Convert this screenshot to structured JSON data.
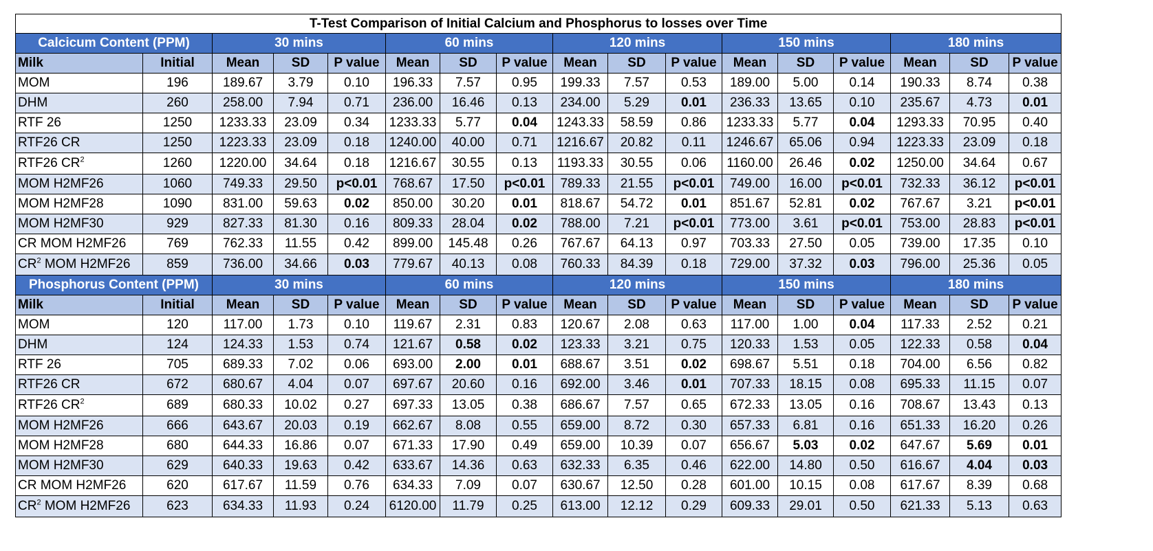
{
  "title": "T-Test Comparison of Initial Calcium and Phosphorus to losses over Time",
  "time_points": [
    "30 mins",
    "60 mins",
    "120 mins",
    "150 mins",
    "180 mins"
  ],
  "header": {
    "milk": "Milk",
    "initial": "Initial",
    "mean": "Mean",
    "sd": "SD",
    "p": "P value"
  },
  "sections": [
    {
      "label": "Calcicum Content (PPM)",
      "rows": [
        {
          "milk": "MOM",
          "initial": "196",
          "cells": [
            "189.67",
            "3.79",
            "0.10",
            "196.33",
            "7.57",
            "0.95",
            "199.33",
            "7.57",
            "0.53",
            "189.00",
            "5.00",
            "0.14",
            "190.33",
            "8.74",
            "0.38"
          ],
          "bold": []
        },
        {
          "milk": "DHM",
          "initial": "260",
          "cells": [
            "258.00",
            "7.94",
            "0.71",
            "236.00",
            "16.46",
            "0.13",
            "234.00",
            "5.29",
            "0.01",
            "236.33",
            "13.65",
            "0.10",
            "235.67",
            "4.73",
            "0.01"
          ],
          "bold": [
            8,
            14
          ]
        },
        {
          "milk": "RTF 26",
          "initial": "1250",
          "cells": [
            "1233.33",
            "23.09",
            "0.34",
            "1233.33",
            "5.77",
            "0.04",
            "1243.33",
            "58.59",
            "0.86",
            "1233.33",
            "5.77",
            "0.04",
            "1293.33",
            "70.95",
            "0.40"
          ],
          "bold": [
            5,
            11
          ]
        },
        {
          "milk": "RTF26 CR",
          "initial": "1250",
          "cells": [
            "1223.33",
            "23.09",
            "0.18",
            "1240.00",
            "40.00",
            "0.71",
            "1216.67",
            "20.82",
            "0.11",
            "1246.67",
            "65.06",
            "0.94",
            "1223.33",
            "23.09",
            "0.18"
          ],
          "bold": []
        },
        {
          "milk": "RTF26 CR",
          "milk_sup": "2",
          "initial": "1260",
          "cells": [
            "1220.00",
            "34.64",
            "0.18",
            "1216.67",
            "30.55",
            "0.13",
            "1193.33",
            "30.55",
            "0.06",
            "1160.00",
            "26.46",
            "0.02",
            "1250.00",
            "34.64",
            "0.67"
          ],
          "bold": [
            11
          ],
          "tall": true
        },
        {
          "milk": "MOM H2MF26",
          "initial": "1060",
          "cells": [
            "749.33",
            "29.50",
            "p<0.01",
            "768.67",
            "17.50",
            "p<0.01",
            "789.33",
            "21.55",
            "p<0.01",
            "749.00",
            "16.00",
            "p<0.01",
            "732.33",
            "36.12",
            "p<0.01"
          ],
          "bold": [
            2,
            5,
            8,
            11,
            14
          ]
        },
        {
          "milk": "MOM H2MF28",
          "initial": "1090",
          "cells": [
            "831.00",
            "59.63",
            "0.02",
            "850.00",
            "30.20",
            "0.01",
            "818.67",
            "54.72",
            "0.01",
            "851.67",
            "52.81",
            "0.02",
            "767.67",
            "3.21",
            "p<0.01"
          ],
          "bold": [
            2,
            5,
            8,
            11,
            14
          ]
        },
        {
          "milk": "MOM H2MF30",
          "initial": "929",
          "cells": [
            "827.33",
            "81.30",
            "0.16",
            "809.33",
            "28.04",
            "0.02",
            "788.00",
            "7.21",
            "p<0.01",
            "773.00",
            "3.61",
            "p<0.01",
            "753.00",
            "28.83",
            "p<0.01"
          ],
          "bold": [
            5,
            8,
            11,
            14
          ]
        },
        {
          "milk": "CR MOM H2MF26",
          "initial": "769",
          "cells": [
            "762.33",
            "11.55",
            "0.42",
            "899.00",
            "145.48",
            "0.26",
            "767.67",
            "64.13",
            "0.97",
            "703.33",
            "27.50",
            "0.05",
            "739.00",
            "17.35",
            "0.10"
          ],
          "bold": []
        },
        {
          "milk": "CR",
          "milk_sup": "2",
          "milk_after": " MOM H2MF26",
          "initial": "859",
          "cells": [
            "736.00",
            "34.66",
            "0.03",
            "779.67",
            "40.13",
            "0.08",
            "760.33",
            "84.39",
            "0.18",
            "729.00",
            "37.32",
            "0.03",
            "796.00",
            "25.36",
            "0.05"
          ],
          "bold": [
            2,
            11
          ],
          "tall": true
        }
      ]
    },
    {
      "label": "Phosphorus Content (PPM)",
      "rows": [
        {
          "milk": "MOM",
          "initial": "120",
          "cells": [
            "117.00",
            "1.73",
            "0.10",
            "119.67",
            "2.31",
            "0.83",
            "120.67",
            "2.08",
            "0.63",
            "117.00",
            "1.00",
            "0.04",
            "117.33",
            "2.52",
            "0.21"
          ],
          "bold": [
            11
          ]
        },
        {
          "milk": "DHM",
          "initial": "124",
          "cells": [
            "124.33",
            "1.53",
            "0.74",
            "121.67",
            "0.58",
            "0.02",
            "123.33",
            "3.21",
            "0.75",
            "120.33",
            "1.53",
            "0.05",
            "122.33",
            "0.58",
            "0.04"
          ],
          "bold": [
            4,
            5,
            14
          ]
        },
        {
          "milk": "RTF 26",
          "initial": "705",
          "cells": [
            "689.33",
            "7.02",
            "0.06",
            "693.00",
            "2.00",
            "0.01",
            "688.67",
            "3.51",
            "0.02",
            "698.67",
            "5.51",
            "0.18",
            "704.00",
            "6.56",
            "0.82"
          ],
          "bold": [
            4,
            5,
            8
          ]
        },
        {
          "milk": "RTF26 CR",
          "initial": "672",
          "cells": [
            "680.67",
            "4.04",
            "0.07",
            "697.67",
            "20.60",
            "0.16",
            "692.00",
            "3.46",
            "0.01",
            "707.33",
            "18.15",
            "0.08",
            "695.33",
            "11.15",
            "0.07"
          ],
          "bold": [
            8
          ]
        },
        {
          "milk": "RTF26 CR",
          "milk_sup": "2",
          "initial": "689",
          "cells": [
            "680.33",
            "10.02",
            "0.27",
            "697.33",
            "13.05",
            "0.38",
            "686.67",
            "7.57",
            "0.65",
            "672.33",
            "13.05",
            "0.16",
            "708.67",
            "13.43",
            "0.13"
          ],
          "bold": [],
          "tall": true
        },
        {
          "milk": "MOM H2MF26",
          "initial": "666",
          "cells": [
            "643.67",
            "20.03",
            "0.19",
            "662.67",
            "8.08",
            "0.55",
            "659.00",
            "8.72",
            "0.30",
            "657.33",
            "6.81",
            "0.16",
            "651.33",
            "16.20",
            "0.26"
          ],
          "bold": []
        },
        {
          "milk": "MOM H2MF28",
          "initial": "680",
          "cells": [
            "644.33",
            "16.86",
            "0.07",
            "671.33",
            "17.90",
            "0.49",
            "659.00",
            "10.39",
            "0.07",
            "656.67",
            "5.03",
            "0.02",
            "647.67",
            "5.69",
            "0.01"
          ],
          "bold": [
            10,
            11,
            13,
            14
          ]
        },
        {
          "milk": "MOM H2MF30",
          "initial": "629",
          "cells": [
            "640.33",
            "19.63",
            "0.42",
            "633.67",
            "14.36",
            "0.63",
            "632.33",
            "6.35",
            "0.46",
            "622.00",
            "14.80",
            "0.50",
            "616.67",
            "4.04",
            "0.03"
          ],
          "bold": [
            13,
            14
          ]
        },
        {
          "milk": "CR MOM H2MF26",
          "initial": "620",
          "cells": [
            "617.67",
            "11.59",
            "0.76",
            "634.33",
            "7.09",
            "0.07",
            "630.67",
            "12.50",
            "0.28",
            "601.00",
            "10.15",
            "0.08",
            "617.67",
            "8.39",
            "0.68"
          ],
          "bold": []
        },
        {
          "milk": "CR",
          "milk_sup": "2",
          "milk_after": " MOM H2MF26",
          "initial": "623",
          "cells": [
            "634.33",
            "11.93",
            "0.24",
            "6120.00",
            "11.79",
            "0.25",
            "613.00",
            "12.12",
            "0.29",
            "609.33",
            "29.01",
            "0.50",
            "621.33",
            "5.13",
            "0.63"
          ],
          "bold": [],
          "tall": true
        }
      ]
    }
  ]
}
